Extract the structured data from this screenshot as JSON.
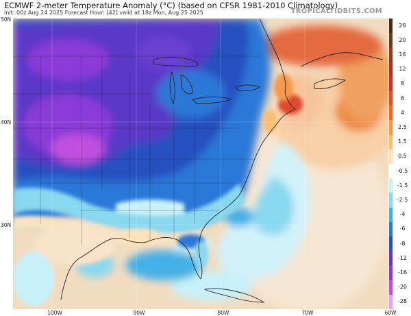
{
  "header": {
    "title": "ECMWF 2-meter Temperature Anomaly (°C) (based on CFSR 1981-2010 Climatology)",
    "subtitle": "Init: 00z Aug 24 2025   Forecast Hour: [42]   valid at 18z Mon, Aug 25 2025",
    "brand": "TROPICALTIDBITS.COM"
  },
  "map": {
    "lat_labels": [
      "50N",
      "40N",
      "30N"
    ],
    "lon_labels": [
      "100W",
      "90W",
      "80W",
      "70W",
      "60W"
    ]
  },
  "legend": {
    "levels": [
      {
        "label": "28",
        "color": "#4a2a18"
      },
      {
        "label": "20",
        "color": "#6b3a1e"
      },
      {
        "label": "16",
        "color": "#8a3a20"
      },
      {
        "label": "12",
        "color": "#a8332a"
      },
      {
        "label": "8",
        "color": "#c8322e"
      },
      {
        "label": "6",
        "color": "#e04a2e"
      },
      {
        "label": "4",
        "color": "#ee6a2e"
      },
      {
        "label": "2.5",
        "color": "#f59a4a"
      },
      {
        "label": "1.5",
        "color": "#f8c072"
      },
      {
        "label": "0.5",
        "color": "#fbe2b8"
      },
      {
        "label": "-0.5",
        "color": "#ffffff"
      },
      {
        "label": "-1.5",
        "color": "#c8f0f8"
      },
      {
        "label": "-2.5",
        "color": "#88d8f0"
      },
      {
        "label": "-4",
        "color": "#44b0e8"
      },
      {
        "label": "-6",
        "color": "#2a78d8"
      },
      {
        "label": "-8",
        "color": "#2850c0"
      },
      {
        "label": "-12",
        "color": "#5a38c8"
      },
      {
        "label": "-16",
        "color": "#8a3ad8"
      },
      {
        "label": "-20",
        "color": "#c050e0"
      },
      {
        "label": "-28",
        "color": "#e8a0f0"
      }
    ]
  },
  "colors": {
    "ocean_warm": "#f2dcc0",
    "cool_cyan": "#88d8f0",
    "cold_blue": "#2a6ad0",
    "very_cold_purple": "#8a3ad8",
    "warm_red": "#e04a2e"
  }
}
